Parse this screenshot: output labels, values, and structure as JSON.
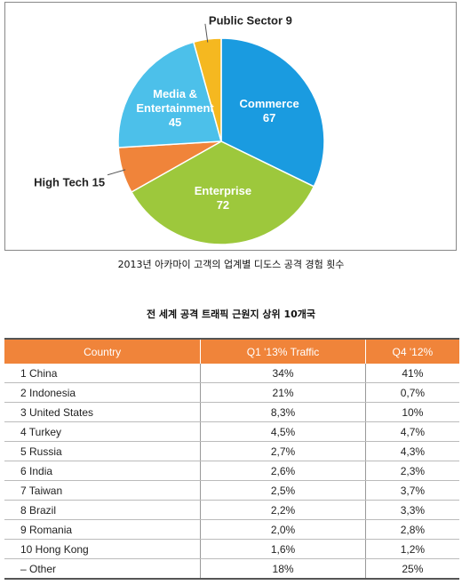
{
  "chart_data": {
    "type": "pie",
    "title": "2013년 아카마이 고객의 업계별 디도스 공격 경험 횟수",
    "categories": [
      "Commerce",
      "Enterprise",
      "High Tech",
      "Media & Entertainment",
      "Public Sector"
    ],
    "values": [
      67,
      72,
      15,
      45,
      9
    ],
    "colors": [
      "#1a9be0",
      "#9dc83c",
      "#f0843a",
      "#4cc0ea",
      "#f5b820"
    ]
  },
  "table": {
    "title": "전 세계 공격 트래픽 근원지 상위 10개국",
    "header": [
      "Country",
      "Q1 '13% Traffic",
      "Q4 '12%"
    ],
    "rows": [
      [
        "1 China",
        "34%",
        "41%"
      ],
      [
        "2 Indonesia",
        "21%",
        "0,7%"
      ],
      [
        "3 United States",
        "8,3%",
        "10%"
      ],
      [
        "4 Turkey",
        "4,5%",
        "4,7%"
      ],
      [
        "5 Russia",
        "2,7%",
        "4,3%"
      ],
      [
        "6 India",
        "2,6%",
        "2,3%"
      ],
      [
        "7 Taiwan",
        "2,5%",
        "3,7%"
      ],
      [
        "8 Brazil",
        "2,2%",
        "3,3%"
      ],
      [
        "9 Romania",
        "2,0%",
        "2,8%"
      ],
      [
        "10 Hong Kong",
        "1,6%",
        "1,2%"
      ],
      [
        "– Other",
        "18%",
        "25%"
      ]
    ]
  }
}
